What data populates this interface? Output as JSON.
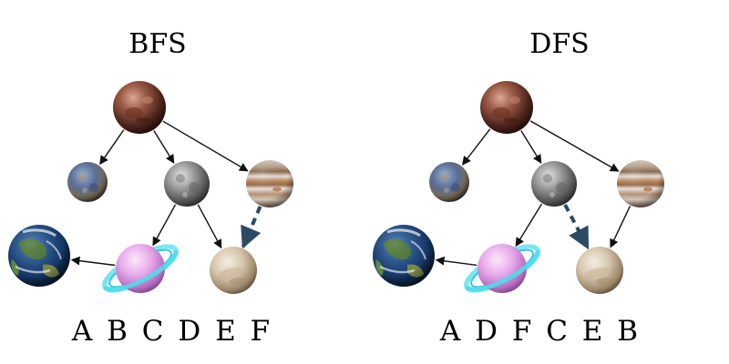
{
  "panels": [
    {
      "id": "bfs",
      "title": "BFS",
      "order": "A B C D E F",
      "nodes": [
        {
          "id": "root",
          "icon": "mars-planet-icon"
        },
        {
          "id": "left-child",
          "icon": "mercury-planet-icon"
        },
        {
          "id": "middle-child",
          "icon": "moon-planet-icon"
        },
        {
          "id": "right-child",
          "icon": "jupiter-planet-icon"
        },
        {
          "id": "earth",
          "icon": "earth-planet-icon"
        },
        {
          "id": "ringed",
          "icon": "ringed-planet-icon"
        },
        {
          "id": "venus",
          "icon": "venus-planet-icon"
        }
      ],
      "edges": [
        {
          "from": "root",
          "to": "left-child",
          "style": "solid"
        },
        {
          "from": "root",
          "to": "middle-child",
          "style": "solid"
        },
        {
          "from": "root",
          "to": "right-child",
          "style": "solid"
        },
        {
          "from": "middle-child",
          "to": "ringed",
          "style": "solid"
        },
        {
          "from": "middle-child",
          "to": "venus",
          "style": "solid"
        },
        {
          "from": "ringed",
          "to": "earth",
          "style": "solid"
        },
        {
          "from": "right-child",
          "to": "venus",
          "style": "dashed"
        }
      ]
    },
    {
      "id": "dfs",
      "title": "DFS",
      "order": "A D F C E B",
      "nodes": [
        {
          "id": "root",
          "icon": "mars-planet-icon"
        },
        {
          "id": "left-child",
          "icon": "mercury-planet-icon"
        },
        {
          "id": "middle-child",
          "icon": "moon-planet-icon"
        },
        {
          "id": "right-child",
          "icon": "jupiter-planet-icon"
        },
        {
          "id": "earth",
          "icon": "earth-planet-icon"
        },
        {
          "id": "ringed",
          "icon": "ringed-planet-icon"
        },
        {
          "id": "venus",
          "icon": "venus-planet-icon"
        }
      ],
      "edges": [
        {
          "from": "root",
          "to": "left-child",
          "style": "solid"
        },
        {
          "from": "root",
          "to": "middle-child",
          "style": "solid"
        },
        {
          "from": "root",
          "to": "right-child",
          "style": "solid"
        },
        {
          "from": "middle-child",
          "to": "ringed",
          "style": "solid"
        },
        {
          "from": "right-child",
          "to": "venus",
          "style": "solid"
        },
        {
          "from": "ringed",
          "to": "earth",
          "style": "solid"
        },
        {
          "from": "middle-child",
          "to": "venus",
          "style": "dashed"
        }
      ]
    }
  ],
  "colors": {
    "edge": "#111111",
    "dashed_edge": "#2b4a63",
    "background": "#ffffff"
  }
}
